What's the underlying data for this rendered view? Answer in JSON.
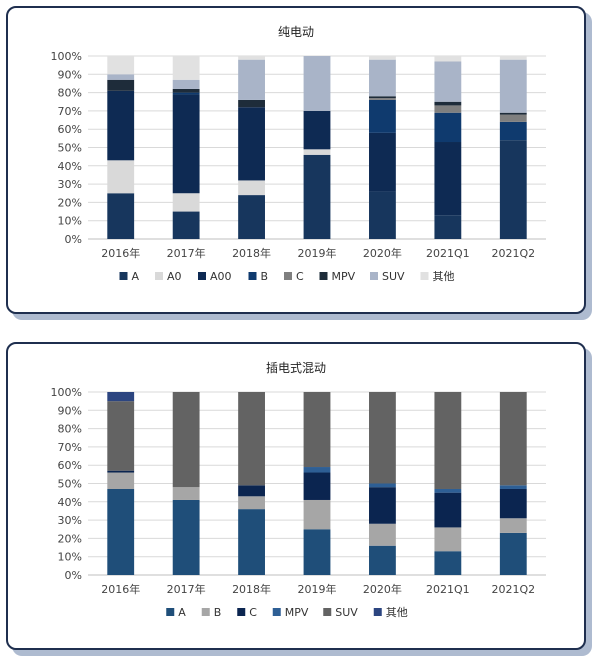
{
  "chart_data": [
    {
      "type": "bar",
      "stacked": true,
      "title": "纯电动",
      "categories": [
        "2016年",
        "2017年",
        "2018年",
        "2019年",
        "2020年",
        "2021Q1",
        "2021Q2"
      ],
      "ylim": [
        0,
        100
      ],
      "yticks": [
        "0%",
        "10%",
        "20%",
        "30%",
        "40%",
        "50%",
        "60%",
        "70%",
        "80%",
        "90%",
        "100%"
      ],
      "grid": true,
      "legend_position": "bottom",
      "series": [
        {
          "name": "A",
          "color": "#17365d",
          "values": [
            25,
            15,
            24,
            46,
            26,
            13,
            54
          ]
        },
        {
          "name": "A0",
          "color": "#d9d9d9",
          "values": [
            18,
            10,
            8,
            3,
            0,
            0,
            0
          ]
        },
        {
          "name": "A00",
          "color": "#0e2a53",
          "values": [
            38,
            54,
            40,
            21,
            32,
            40,
            0
          ]
        },
        {
          "name": "B",
          "color": "#0f3a6e",
          "values": [
            0,
            1,
            0,
            0,
            18,
            16,
            10
          ]
        },
        {
          "name": "C",
          "color": "#7f7f7f",
          "values": [
            0,
            0,
            0,
            0,
            1,
            4,
            4
          ]
        },
        {
          "name": "MPV",
          "color": "#1e2c3a",
          "values": [
            6,
            2,
            4,
            0,
            1,
            2,
            1
          ]
        },
        {
          "name": "SUV",
          "color": "#a9b4c8",
          "values": [
            3,
            5,
            22,
            30,
            20,
            22,
            29
          ]
        },
        {
          "name": "其他",
          "color": "#e1e1e1",
          "values": [
            10,
            13,
            2,
            0,
            2,
            3,
            2
          ]
        }
      ]
    },
    {
      "type": "bar",
      "stacked": true,
      "title": "插电式混动",
      "categories": [
        "2016年",
        "2017年",
        "2018年",
        "2019年",
        "2020年",
        "2021Q1",
        "2021Q2"
      ],
      "ylim": [
        0,
        100
      ],
      "yticks": [
        "0%",
        "10%",
        "20%",
        "30%",
        "40%",
        "50%",
        "60%",
        "70%",
        "80%",
        "90%",
        "100%"
      ],
      "grid": true,
      "legend_position": "bottom",
      "series": [
        {
          "name": "A",
          "color": "#1f4e79",
          "values": [
            47,
            41,
            36,
            25,
            16,
            13,
            23
          ]
        },
        {
          "name": "B",
          "color": "#a6a6a6",
          "values": [
            9,
            7,
            7,
            16,
            12,
            13,
            8
          ]
        },
        {
          "name": "C",
          "color": "#0b2550",
          "values": [
            1,
            0,
            6,
            15,
            20,
            19,
            16
          ]
        },
        {
          "name": "MPV",
          "color": "#2e5f95",
          "values": [
            0,
            0,
            0,
            3,
            2,
            2,
            2
          ]
        },
        {
          "name": "SUV",
          "color": "#636363",
          "values": [
            38,
            52,
            51,
            41,
            50,
            53,
            51
          ]
        },
        {
          "name": "其他",
          "color": "#2c4580",
          "values": [
            5,
            0,
            0,
            0,
            0,
            0,
            0
          ]
        }
      ]
    }
  ]
}
